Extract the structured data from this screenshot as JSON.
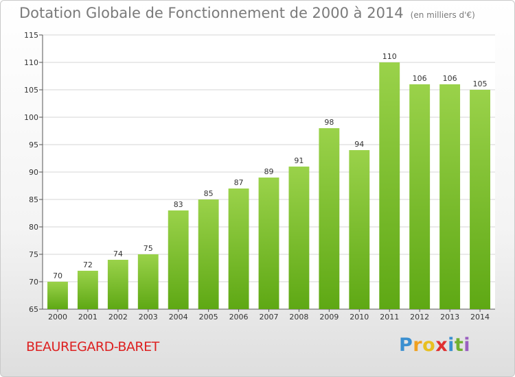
{
  "title": "Dotation Globale de Fonctionnement de 2000 à 2014",
  "subtitle": "(en milliers d'€)",
  "commune": "BEAUREGARD-BARET",
  "logo": {
    "p": "P",
    "r": "r",
    "o": "o",
    "x": "x",
    "i1": "i",
    "t": "t",
    "i2": "i"
  },
  "colors": {
    "bar_top": "#9ad24a",
    "bar_bottom": "#5ea814",
    "commune_text": "#dd2020"
  },
  "chart_data": {
    "type": "bar",
    "title": "Dotation Globale de Fonctionnement de 2000 à 2014",
    "subtitle": "(en milliers d'€)",
    "categories": [
      "2000",
      "2001",
      "2002",
      "2003",
      "2004",
      "2005",
      "2006",
      "2007",
      "2008",
      "2009",
      "2010",
      "2011",
      "2012",
      "2013",
      "2014"
    ],
    "values": [
      70,
      72,
      74,
      75,
      83,
      85,
      87,
      89,
      91,
      98,
      94,
      110,
      106,
      106,
      105
    ],
    "ylim": [
      65,
      115
    ],
    "yticks": [
      65,
      70,
      75,
      80,
      85,
      90,
      95,
      100,
      105,
      110,
      115
    ],
    "grid": true,
    "xlabel": "",
    "ylabel": ""
  }
}
